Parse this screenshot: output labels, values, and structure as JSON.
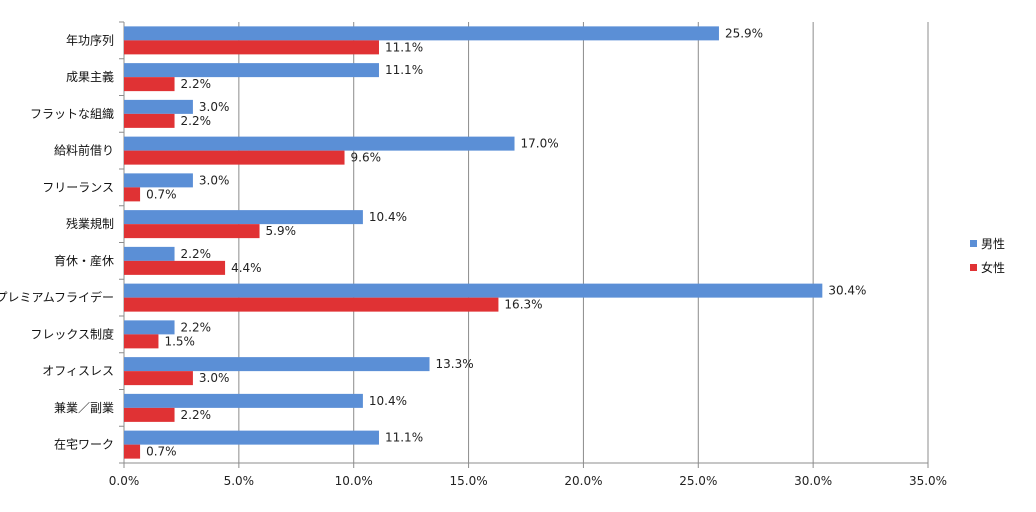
{
  "chart_data": {
    "type": "bar",
    "orientation": "horizontal",
    "categories": [
      "年功序列",
      "成果主義",
      "フラットな組織",
      "給料前借り",
      "フリーランス",
      "残業規制",
      "育休・産休",
      "プレミアムフライデー",
      "フレックス制度",
      "オフィスレス",
      "兼業／副業",
      "在宅ワーク"
    ],
    "series": [
      {
        "name": "男性",
        "color": "#5B8FD6",
        "values": [
          25.9,
          11.1,
          3.0,
          17.0,
          3.0,
          10.4,
          2.2,
          30.4,
          2.2,
          13.3,
          10.4,
          11.1
        ]
      },
      {
        "name": "女性",
        "color": "#E03234",
        "values": [
          11.1,
          2.2,
          2.2,
          9.6,
          0.7,
          5.9,
          4.4,
          16.3,
          1.5,
          3.0,
          2.2,
          0.7
        ]
      }
    ],
    "value_format": "{v}%",
    "xlim": [
      0,
      35
    ],
    "xticks": [
      0,
      5,
      10,
      15,
      20,
      25,
      30,
      35
    ],
    "xtick_labels": [
      "0.0%",
      "5.0%",
      "10.0%",
      "15.0%",
      "20.0%",
      "25.0%",
      "30.0%",
      "35.0%"
    ],
    "grid": true,
    "legend_position": "right",
    "title": "",
    "xlabel": "",
    "ylabel": ""
  }
}
